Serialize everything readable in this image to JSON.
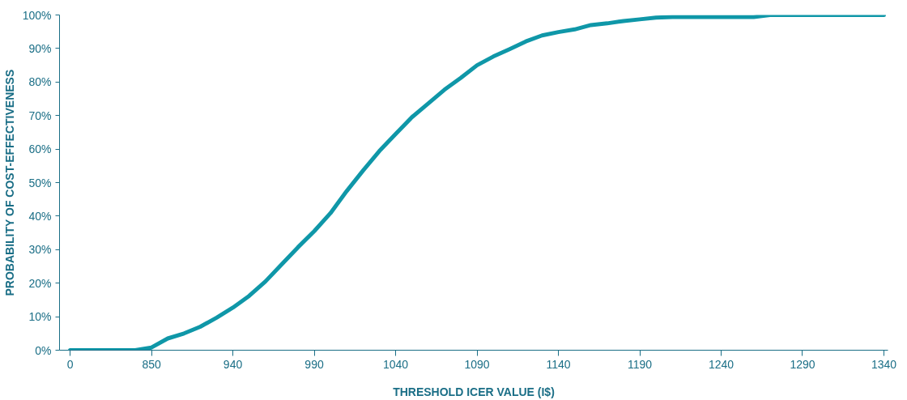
{
  "chart_data": {
    "type": "line",
    "xlabel": "THRESHOLD ICER VALUE (I$)",
    "ylabel": "PROBABILITY OF COST-EFFECTIVENESS",
    "categories": [
      "0",
      null,
      null,
      null,
      null,
      "850",
      null,
      null,
      null,
      null,
      "940",
      null,
      null,
      null,
      null,
      "990",
      null,
      null,
      null,
      null,
      "1040",
      null,
      null,
      null,
      null,
      "1090",
      null,
      null,
      null,
      null,
      "1140",
      null,
      null,
      null,
      null,
      "1190",
      null,
      null,
      null,
      null,
      "1240",
      null,
      null,
      null,
      null,
      "1290",
      null,
      null,
      null,
      null,
      "1340"
    ],
    "series": [
      {
        "color": "#0f97a8",
        "values": [
          0,
          0,
          0,
          0,
          0,
          0.8,
          3.5,
          5,
          7,
          9.7,
          12.7,
          16.2,
          20.5,
          25.6,
          30.7,
          35.5,
          40.9,
          47.5,
          53.6,
          59.4,
          64.5,
          69.5,
          73.6,
          77.7,
          81.2,
          85,
          87.6,
          89.8,
          92.1,
          93.9,
          94.9,
          95.7,
          97,
          97.5,
          98.2,
          98.7,
          99.2,
          99.4,
          99.4,
          99.4,
          99.4,
          99.4,
          99.4,
          100,
          100,
          100,
          100,
          100,
          100,
          100,
          100
        ]
      }
    ],
    "ylim": [
      0,
      100
    ],
    "yticks": [
      {
        "value": 0,
        "label": "0%"
      },
      {
        "value": 10,
        "label": "10%"
      },
      {
        "value": 20,
        "label": "20%"
      },
      {
        "value": 30,
        "label": "30%"
      },
      {
        "value": 40,
        "label": "40%"
      },
      {
        "value": 50,
        "label": "50%"
      },
      {
        "value": 60,
        "label": "60%"
      },
      {
        "value": 70,
        "label": "70%"
      },
      {
        "value": 80,
        "label": "80%"
      },
      {
        "value": 90,
        "label": "90%"
      },
      {
        "value": 100,
        "label": "100%"
      }
    ],
    "grid": false,
    "marker": "none",
    "line_style": "solid"
  }
}
